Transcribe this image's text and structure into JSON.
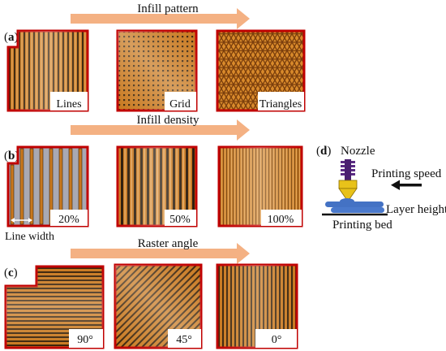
{
  "rows": {
    "a": {
      "tag_open": "(",
      "tag_letter": "a",
      "tag_close": ")",
      "arrow_title": "Infill pattern",
      "samples": [
        "Lines",
        "Grid",
        "Triangles"
      ]
    },
    "b": {
      "tag_open": "(",
      "tag_letter": "b",
      "tag_close": ")",
      "arrow_title": "Infill density",
      "samples": [
        "20%",
        "50%",
        "100%"
      ],
      "line_width_label": "Line width"
    },
    "c": {
      "tag_open": "(",
      "tag_letter": "c",
      "tag_close": ")",
      "arrow_title": "Raster angle",
      "samples": [
        "90°",
        "45°",
        "0°"
      ]
    }
  },
  "panel_d": {
    "tag_open": "(",
    "tag_letter": "d",
    "tag_close": ")",
    "nozzle_label": "Nozzle",
    "printing_speed_label": "Printing speed",
    "layer_height_label": "Layer height",
    "printing_bed_label": "Printing bed"
  },
  "colors": {
    "arrow": "#f4b183",
    "border": "#c00000",
    "filament": "#c8781e",
    "filament_dark": "#8a4a12",
    "gap": "#222222",
    "nozzle_purple": "#5b2c83",
    "nozzle_yellow": "#e8c21a",
    "bed_blue": "#4472c4"
  }
}
